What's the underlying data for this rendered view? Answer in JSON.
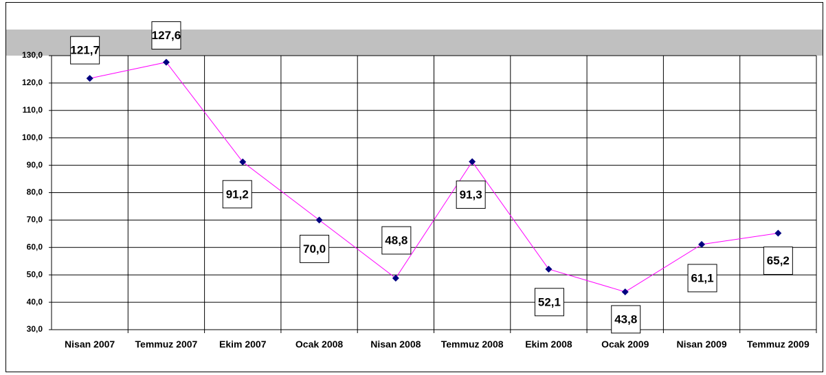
{
  "chart_data": {
    "type": "line",
    "categories": [
      "Nisan 2007",
      "Temmuz 2007",
      "Ekim 2007",
      "Ocak 2008",
      "Nisan 2008",
      "Temmuz 2008",
      "Ekim 2008",
      "Ocak 2009",
      "Nisan 2009",
      "Temmuz 2009"
    ],
    "series": [
      {
        "color": "#ff00ff",
        "marker_color": "#000080",
        "values": [
          121.7,
          127.6,
          91.2,
          70.0,
          48.8,
          91.3,
          52.1,
          43.8,
          61.1,
          65.2
        ],
        "value_labels": [
          "121,7",
          "127,6",
          "91,2",
          "70,0",
          "48,8",
          "91,3",
          "52,1",
          "43,8",
          "61,1",
          "65,2"
        ]
      }
    ],
    "ylim": [
      30,
      130
    ],
    "yticks": [
      {
        "value": 30,
        "label": "30,0"
      },
      {
        "value": 40,
        "label": "40,0"
      },
      {
        "value": 50,
        "label": "50,0"
      },
      {
        "value": 60,
        "label": "60,0"
      },
      {
        "value": 70,
        "label": "70,0"
      },
      {
        "value": 80,
        "label": "80,0"
      },
      {
        "value": 90,
        "label": "90,0"
      },
      {
        "value": 100,
        "label": "100,0"
      },
      {
        "value": 110,
        "label": "110,0"
      },
      {
        "value": 120,
        "label": "120,0"
      },
      {
        "value": 130,
        "label": "130,0"
      }
    ],
    "grid": true
  }
}
